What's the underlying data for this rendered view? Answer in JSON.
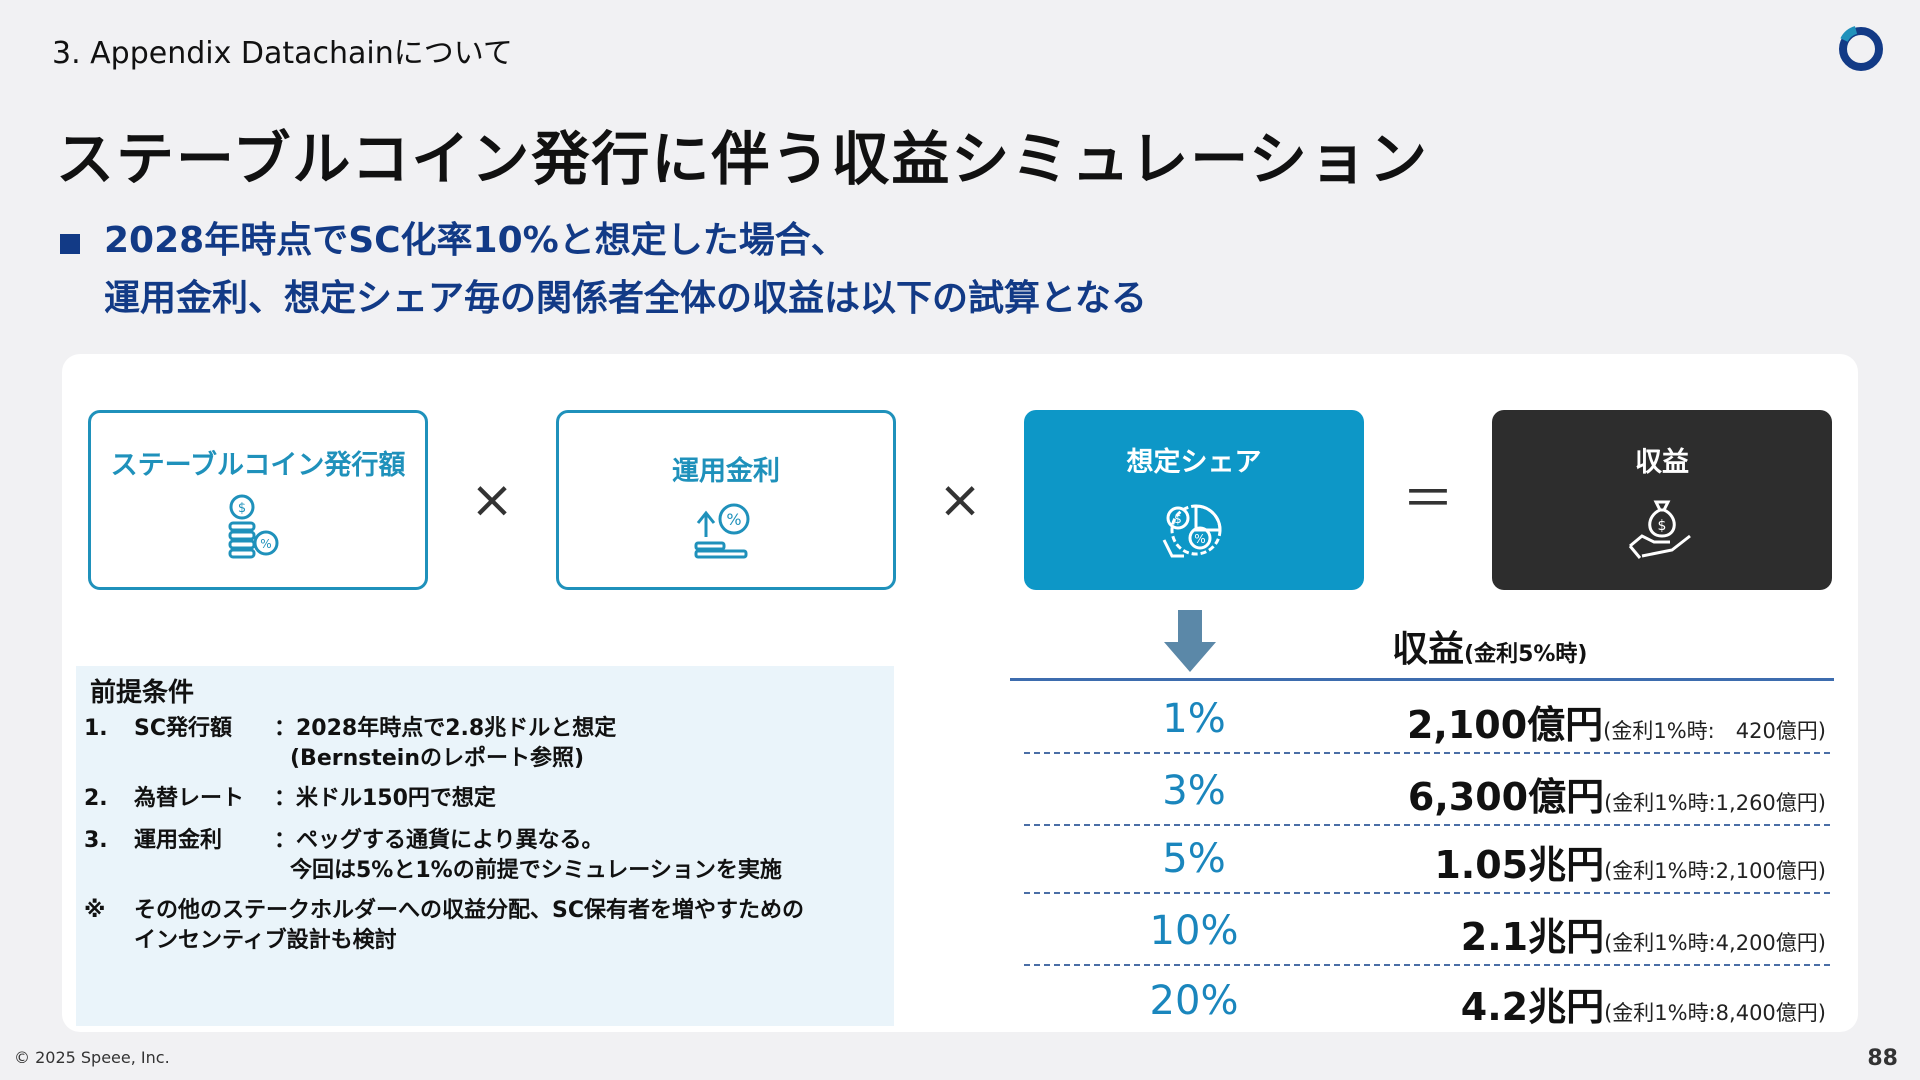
{
  "header": {
    "breadcrumb": "3. Appendix Datachainについて",
    "title": "ステーブルコイン発行に伴う収益シミュレーション",
    "lead_line1": "2028年時点でSC化率10%と想定した場合、",
    "lead_line2": "運用金利、想定シェア毎の関係者全体の収益は以下の試算となる"
  },
  "formula": {
    "box1": "ステーブルコイン発行額",
    "box2": "運用金利",
    "box3": "想定シェア",
    "box4": "収益",
    "times1": "×",
    "times2": "×",
    "equals": "＝"
  },
  "revenue": {
    "heading": "収益",
    "heading_note": "(金利5%時)",
    "rows": [
      {
        "share": "1%",
        "amount": "2,100億円",
        "note": "(金利1%時:　420億円)"
      },
      {
        "share": "3%",
        "amount": "6,300億円",
        "note": "(金利1%時:1,260億円)"
      },
      {
        "share": "5%",
        "amount": "1.05兆円",
        "note": "(金利1%時:2,100億円)"
      },
      {
        "share": "10%",
        "amount": "2.1兆円",
        "note": "(金利1%時:4,200億円)"
      },
      {
        "share": "20%",
        "amount": "4.2兆円",
        "note": "(金利1%時:8,400億円)"
      }
    ]
  },
  "conditions": {
    "title": "前提条件",
    "items": [
      {
        "num": "1.",
        "key": "SC発行額",
        "val": "：2028年時点で2.8兆ドルと想定",
        "val2": "(Bernsteinのレポート参照)"
      },
      {
        "num": "2.",
        "key": "為替レート",
        "val": "：米ドル150円で想定",
        "val2": ""
      },
      {
        "num": "3.",
        "key": "運用金利",
        "val": "：ペッグする通貨により異なる。",
        "val2": "今回は5%と1%の前提でシミュレーションを実施"
      }
    ],
    "note_mark": "※",
    "note_line1": "その他のステークホルダーへの収益分配、SC保有者を増やすための",
    "note_line2": "インセンティブ設計も検討"
  },
  "footer": {
    "copyright": "© 2025 Speee, Inc.",
    "page": "88"
  },
  "colors": {
    "navy": "#123a86",
    "teal": "#1f91bb",
    "blue_fill": "#0d97c7",
    "dark_fill": "#2d2d2d",
    "share_text": "#1a86bd"
  }
}
